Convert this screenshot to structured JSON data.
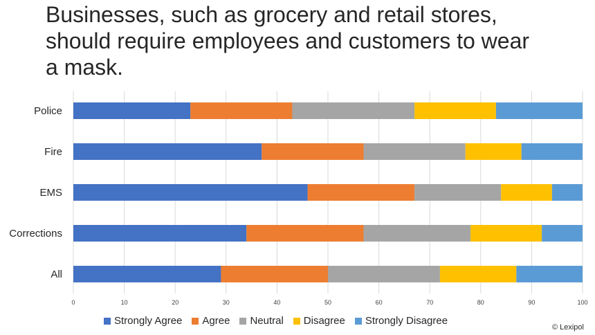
{
  "title_lines": [
    "Businesses, such as grocery and retail stores,",
    "should require employees and customers to wear",
    "a mask."
  ],
  "copyright": "© Lexipol",
  "chart_data": {
    "type": "bar",
    "orientation": "horizontal",
    "stacked": true,
    "title": "Businesses, such as grocery and retail stores, should require employees and customers to wear a mask.",
    "categories": [
      "Police",
      "Fire",
      "EMS",
      "Corrections",
      "All"
    ],
    "xlim": [
      0,
      100
    ],
    "xticks": [
      0,
      10,
      20,
      30,
      40,
      50,
      60,
      70,
      80,
      90,
      100
    ],
    "grid": "vertical",
    "legend_position": "bottom",
    "series": [
      {
        "name": "Strongly Agree",
        "color": "#4472C4",
        "values": [
          23,
          37,
          46,
          34,
          29
        ]
      },
      {
        "name": "Agree",
        "color": "#ED7D31",
        "values": [
          20,
          20,
          21,
          23,
          21
        ]
      },
      {
        "name": "Neutral",
        "color": "#A5A5A5",
        "values": [
          24,
          20,
          17,
          21,
          22
        ]
      },
      {
        "name": "Disagree",
        "color": "#FFC000",
        "values": [
          16,
          11,
          10,
          14,
          15
        ]
      },
      {
        "name": "Strongly Disagree",
        "color": "#5B9BD5",
        "values": [
          17,
          12,
          6,
          8,
          13
        ]
      }
    ]
  }
}
